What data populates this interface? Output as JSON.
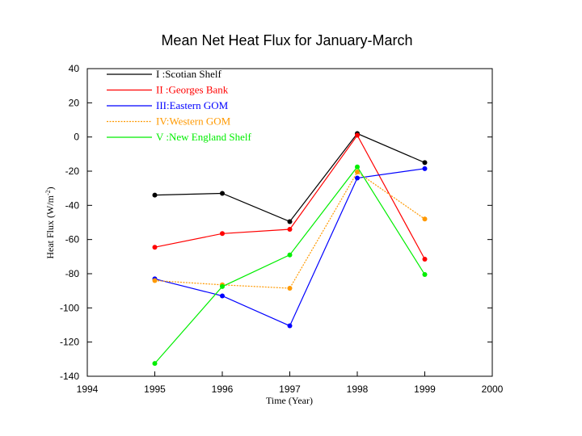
{
  "chart_data": {
    "type": "line",
    "title": "Mean Net Heat Flux for January-March",
    "xlabel": "Time (Year)",
    "ylabel": "Heat Flux (W/m",
    "ylabel_sup": "-2",
    "ylabel_close": ")",
    "xlim": [
      1994,
      2000
    ],
    "ylim": [
      -140,
      40
    ],
    "xticks": [
      1994,
      1995,
      1996,
      1997,
      1998,
      1999,
      2000
    ],
    "yticks": [
      40,
      20,
      0,
      -20,
      -40,
      -60,
      -80,
      -100,
      -120,
      -140
    ],
    "grid": false,
    "legend_position": "top-left",
    "x": [
      1995,
      1996,
      1997,
      1998,
      1999
    ],
    "series": [
      {
        "name": "I  :Scotian Shelf",
        "color": "#000000",
        "dashed": false,
        "values": [
          -34,
          -33,
          -49.5,
          2,
          -15
        ]
      },
      {
        "name": "II :Georges Bank",
        "color": "#ff0000",
        "dashed": false,
        "values": [
          -64.5,
          -56.5,
          -54,
          1,
          -71.5
        ]
      },
      {
        "name": "III:Eastern GOM",
        "color": "#0000ff",
        "dashed": false,
        "values": [
          -83,
          -93,
          -110.5,
          -24,
          -18.5
        ]
      },
      {
        "name": "IV:Western GOM",
        "color": "#ff9900",
        "dashed": true,
        "values": [
          -84,
          -86.5,
          -88.5,
          -20.5,
          -48
        ]
      },
      {
        "name": "V :New England Shelf",
        "color": "#00ee00",
        "dashed": false,
        "values": [
          -132.5,
          -87.5,
          -69,
          -17.5,
          -80.5
        ]
      }
    ]
  }
}
